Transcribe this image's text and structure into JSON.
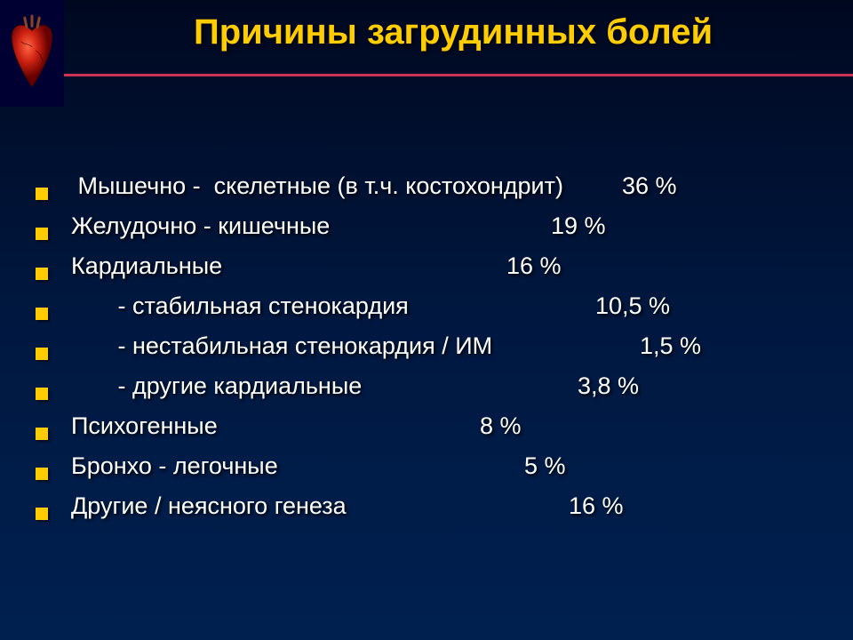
{
  "slide": {
    "title": "Причины загрудинных болей",
    "background_gradient": [
      "#000820",
      "#001840",
      "#002050"
    ],
    "title_color": "#ffcc00",
    "divider_color": "#cc3355",
    "bullet_color": "#ffcc00",
    "text_color": "#ffffff",
    "title_fontsize": 40,
    "item_fontsize": 27,
    "items": [
      {
        "label": " Мышечно -  скелетные (в т.ч. костохондрит)",
        "value": "36 %",
        "value_pos": 620
      },
      {
        "label": "Желудочно - кишечные",
        "value": "19 %",
        "value_pos": 540
      },
      {
        "label": "Кардиальные",
        "value": "16 %",
        "value_pos": 490
      },
      {
        "label": "       - стабильная стенокардия",
        "value": "10,5 %",
        "value_pos": 590
      },
      {
        "label": "       - нестабильная стенокардия / ИМ",
        "value": "1,5 %",
        "value_pos": 640
      },
      {
        "label": "       - другие кардиальные",
        "value": "3,8 %",
        "value_pos": 570
      },
      {
        "label": "Психогенные",
        "value": "8 %",
        "value_pos": 460
      },
      {
        "label": "Бронхо - легочные",
        "value": "5 %",
        "value_pos": 510
      },
      {
        "label": "Другие / неясного генеза",
        "value": "16 %",
        "value_pos": 560
      }
    ]
  }
}
